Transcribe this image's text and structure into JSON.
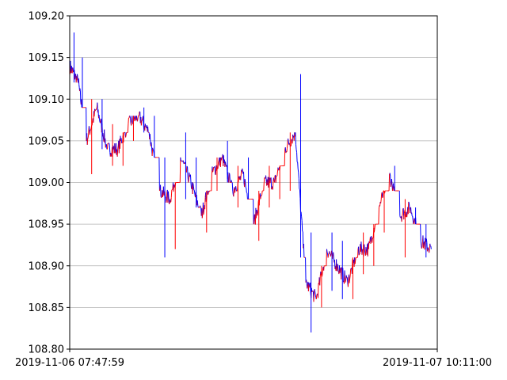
{
  "chart_data": {
    "type": "line",
    "title": "",
    "xlabel": "",
    "ylabel": "",
    "ylim": [
      108.8,
      109.2
    ],
    "y_ticks": [
      "108.80",
      "108.85",
      "108.90",
      "108.95",
      "109.00",
      "109.05",
      "109.10",
      "109.15",
      "109.20"
    ],
    "x_ticks": [
      "2019-11-06 07:47:59",
      "2019-11-07 10:11:00"
    ],
    "xlim": [
      "2019-11-06 07:47:59",
      "2019-11-07 10:11:00"
    ],
    "grid": "horizontal",
    "colors": {
      "down": "#0000ff",
      "up": "#ff0000",
      "grid": "#b0b0b0"
    },
    "series": [
      {
        "x": [
          "2019-11-06 07:47:59",
          "2019-11-06 08:25:00",
          "2019-11-06 09:00:00",
          "2019-11-06 09:45:00",
          "2019-11-06 10:30:00",
          "2019-11-06 11:15:00",
          "2019-11-06 12:00:00",
          "2019-11-06 12:45:00",
          "2019-11-06 13:30:00",
          "2019-11-06 14:15:00",
          "2019-11-06 15:00:00",
          "2019-11-06 15:45:00",
          "2019-11-06 16:30:00",
          "2019-11-06 17:15:00",
          "2019-11-06 18:00:00",
          "2019-11-06 18:45:00",
          "2019-11-06 19:30:00",
          "2019-11-06 20:15:00",
          "2019-11-06 21:00:00",
          "2019-11-06 21:45:00",
          "2019-11-06 22:30:00",
          "2019-11-06 23:15:00",
          "2019-11-07 00:00:00",
          "2019-11-07 00:45:00",
          "2019-11-07 01:30:00",
          "2019-11-07 02:15:00",
          "2019-11-07 03:00:00",
          "2019-11-07 03:45:00",
          "2019-11-07 04:30:00",
          "2019-11-07 05:15:00",
          "2019-11-07 06:00:00",
          "2019-11-07 06:45:00",
          "2019-11-07 07:30:00",
          "2019-11-07 08:15:00",
          "2019-11-07 09:00:00",
          "2019-11-07 09:45:00"
        ],
        "y": [
          109.14,
          109.12,
          109.05,
          109.09,
          109.04,
          109.04,
          109.07,
          109.08,
          109.06,
          108.99,
          108.98,
          109.03,
          109.0,
          108.96,
          109.01,
          109.03,
          108.99,
          109.01,
          108.95,
          109.0,
          109.0,
          109.04,
          109.06,
          108.88,
          108.86,
          108.92,
          108.9,
          108.88,
          108.92,
          108.92,
          108.97,
          109.01,
          108.96,
          108.97,
          108.93,
          108.92
        ],
        "high": [
          109.18,
          109.15,
          109.1,
          109.1,
          109.07,
          109.06,
          109.08,
          109.09,
          109.08,
          109.03,
          109.0,
          109.06,
          109.03,
          108.99,
          109.03,
          109.05,
          109.02,
          109.03,
          108.99,
          109.02,
          109.02,
          109.06,
          109.13,
          108.94,
          108.9,
          108.94,
          108.93,
          108.91,
          108.94,
          108.95,
          108.99,
          109.02,
          108.98,
          108.97,
          108.95,
          108.93
        ],
        "low": [
          109.12,
          109.09,
          109.01,
          109.04,
          109.02,
          109.02,
          109.05,
          109.06,
          109.03,
          108.91,
          108.92,
          108.98,
          108.97,
          108.94,
          108.99,
          109.0,
          108.97,
          108.98,
          108.93,
          108.97,
          108.98,
          108.99,
          108.91,
          108.82,
          108.85,
          108.87,
          108.86,
          108.86,
          108.89,
          108.9,
          108.94,
          108.99,
          108.91,
          108.95,
          108.91,
          108.91
        ]
      }
    ]
  }
}
